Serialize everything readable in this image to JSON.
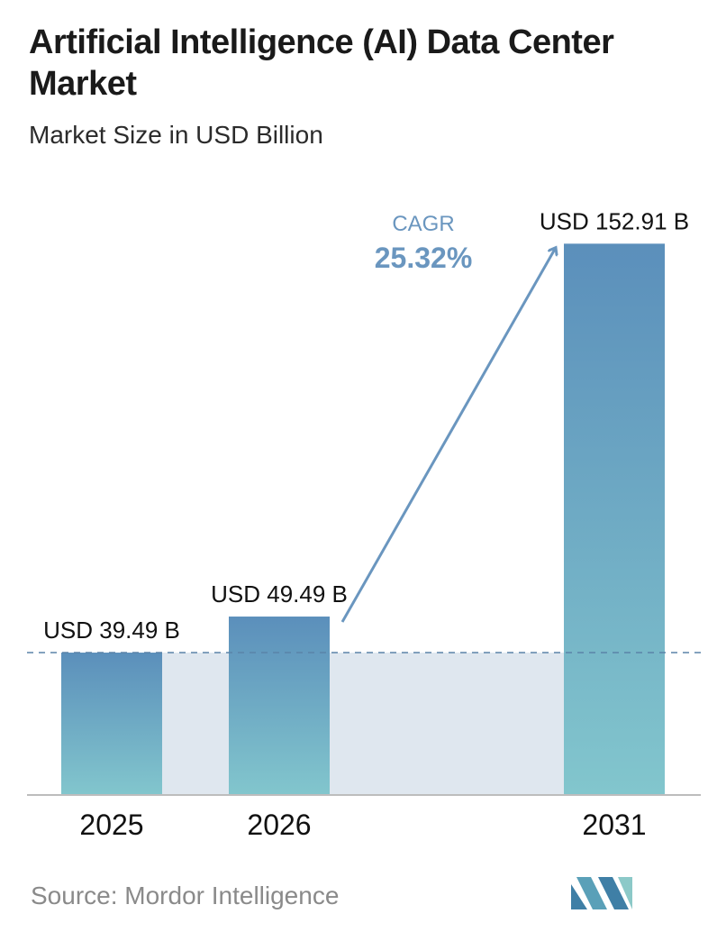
{
  "title": "Artificial Intelligence (AI) Data Center Market",
  "subtitle": "Market Size in USD Billion",
  "source": "Source:  Mordor Intelligence",
  "cagr": {
    "label": "CAGR",
    "value": "25.32%"
  },
  "colors": {
    "bar_top": "#5b8fbb",
    "bar_bottom": "#82c6cd",
    "band": "#dfe7ef",
    "dashed_line": "#5b84a8",
    "arrow": "#6a96bf",
    "axis": "#bdbdbd",
    "source_text": "#8a8a8a"
  },
  "chart_data": {
    "type": "bar",
    "categories": [
      "2025",
      "2026",
      "2031"
    ],
    "values": [
      39.49,
      49.49,
      152.91
    ],
    "data_labels": [
      "USD 39.49 B",
      "USD 49.49 B",
      "USD 152.91 B"
    ],
    "title": "Artificial Intelligence (AI) Data Center Market",
    "subtitle": "Market Size in USD Billion",
    "xlabel": "",
    "ylabel": "",
    "ylim": [
      0,
      160
    ],
    "grid": false,
    "legend": "none",
    "annotations": [
      {
        "type": "dashed-reference-line",
        "at_value": 39.49
      },
      {
        "type": "arrow",
        "from_category": "2026",
        "to_category": "2031",
        "label": "CAGR 25.32%"
      }
    ]
  }
}
